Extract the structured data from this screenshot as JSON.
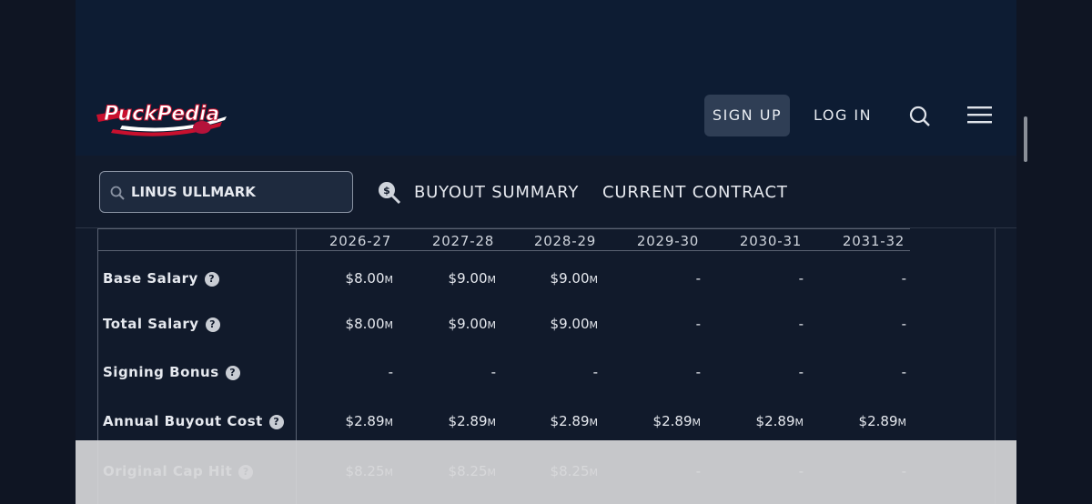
{
  "header": {
    "logo": "PuckPedia",
    "nav": [
      "SIGN UP",
      "LOG IN"
    ]
  },
  "toolbar": {
    "search": "LINUS ULLMARK",
    "icon": "$",
    "tabs": [
      "BUYOUT SUMMARY",
      "CURRENT CONTRACT"
    ]
  },
  "table": {
    "help": "?",
    "columns": [
      "2026-27",
      "2027-28",
      "2028-29",
      "2029-30",
      "2030-31",
      "2031-32"
    ],
    "rows": [
      {
        "label": "Base Salary",
        "cells": [
          {
            "amount": "$8.00",
            "unit": "M"
          },
          {
            "amount": "$9.00",
            "unit": "M"
          },
          {
            "amount": "$9.00",
            "unit": "M"
          },
          "-",
          "-",
          "-"
        ]
      },
      {
        "label": "Total Salary",
        "cells": [
          {
            "amount": "$8.00",
            "unit": "M"
          },
          {
            "amount": "$9.00",
            "unit": "M"
          },
          {
            "amount": "$9.00",
            "unit": "M"
          },
          "-",
          "-",
          "-"
        ]
      },
      {
        "label": "Signing Bonus",
        "cells": [
          "-",
          "-",
          "-",
          "-",
          "-",
          "-"
        ]
      },
      {
        "label": "Annual Buyout Cost",
        "cells": [
          {
            "amount": "$2.89",
            "unit": "M"
          },
          {
            "amount": "$2.89",
            "unit": "M"
          },
          {
            "amount": "$2.89",
            "unit": "M"
          },
          {
            "amount": "$2.89",
            "unit": "M"
          },
          {
            "amount": "$2.89",
            "unit": "M"
          },
          {
            "amount": "$2.89",
            "unit": "M"
          }
        ]
      },
      {
        "label": "Original Cap Hit",
        "cells": [
          {
            "amount": "$8.25",
            "unit": "M"
          },
          {
            "amount": "$8.25",
            "unit": "M"
          },
          {
            "amount": "$8.25",
            "unit": "M"
          },
          "-",
          "-",
          "-"
        ]
      }
    ]
  }
}
